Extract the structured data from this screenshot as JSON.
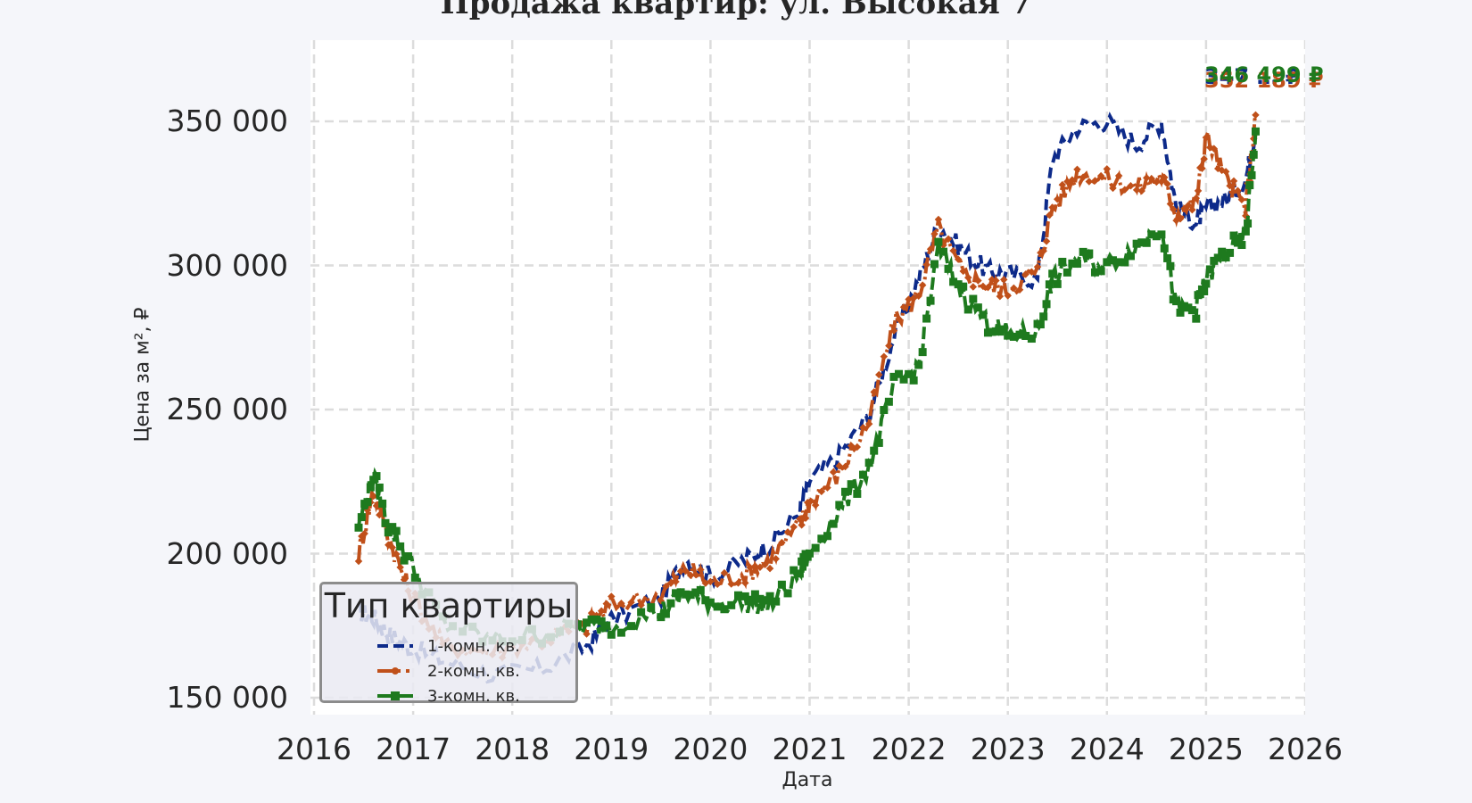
{
  "title": "Продажа квартир: ул. Высокая 7",
  "axes": {
    "ylabel": "Цена за м², ₽",
    "xlabel": "Дата",
    "yticks": [
      "150 000",
      "200 000",
      "250 000",
      "300 000",
      "350 000"
    ],
    "xticks": [
      "2016",
      "2017",
      "2018",
      "2019",
      "2020",
      "2021",
      "2022",
      "2023",
      "2024",
      "2025",
      "2026"
    ]
  },
  "legend": {
    "title": "Тип квартиры",
    "items": [
      {
        "label": "1-комн. кв.",
        "color": "#0d2a8a",
        "style": "dashed"
      },
      {
        "label": "2-комн. кв.",
        "color": "#c0501a",
        "style": "dash-dot with x markers"
      },
      {
        "label": "3-комн. кв.",
        "color": "#1e7a1e",
        "style": "dashed with square markers"
      }
    ]
  },
  "end_labels": {
    "one_room": "347 … ₽",
    "two_room": "352 189 ₽",
    "three_room": "346 499 ₽"
  },
  "colors": {
    "background": "#f5f6fa",
    "plot_bg": "#ffffff",
    "grid": "#dcdcdc",
    "one_room": "#0d2a8a",
    "two_room": "#c0501a",
    "three_room": "#1e7a1e"
  },
  "chart_data": {
    "type": "line",
    "title": "Продажа квартир: ул. Высокая 7",
    "xlabel": "Дата",
    "ylabel": "Цена за м², ₽",
    "xlim": [
      2016,
      2026
    ],
    "ylim": [
      145000,
      372000
    ],
    "grid": true,
    "legend_position": "lower left",
    "x": [
      2016.45,
      2016.6,
      2016.75,
      2016.95,
      2017.3,
      2017.8,
      2018.3,
      2018.75,
      2019.0,
      2019.5,
      2019.75,
      2020.0,
      2020.35,
      2020.6,
      2020.9,
      2021.0,
      2021.3,
      2021.6,
      2021.85,
      2022.1,
      2022.3,
      2022.55,
      2022.8,
      2023.0,
      2023.3,
      2023.45,
      2023.7,
      2024.0,
      2024.3,
      2024.55,
      2024.7,
      2024.9,
      2025.0,
      2025.2,
      2025.4,
      2025.5
    ],
    "series": [
      {
        "name": "1-комн. кв.",
        "values": [
          180000,
          178000,
          172000,
          168000,
          163000,
          158000,
          160000,
          168000,
          177000,
          185000,
          198000,
          192000,
          198000,
          203000,
          215000,
          225000,
          234000,
          248000,
          275000,
          295000,
          314000,
          305000,
          298000,
          297000,
          295000,
          337000,
          348000,
          350000,
          342000,
          350000,
          320000,
          315000,
          320000,
          323000,
          330000,
          347000
        ]
      },
      {
        "name": "2-комн. кв.",
        "values": [
          200000,
          222000,
          206000,
          188000,
          168000,
          166000,
          170000,
          175000,
          182000,
          186000,
          195000,
          190000,
          193000,
          198000,
          210000,
          218000,
          228000,
          246000,
          280000,
          290000,
          313000,
          297000,
          293000,
          292000,
          298000,
          320000,
          332000,
          330000,
          327000,
          331000,
          318000,
          322000,
          345000,
          330000,
          320000,
          352189
        ]
      },
      {
        "name": "3-комн. кв.",
        "values": [
          210000,
          227000,
          210000,
          198000,
          176000,
          170000,
          172000,
          175000,
          175000,
          180000,
          186000,
          183000,
          183000,
          182000,
          193000,
          200000,
          215000,
          230000,
          258000,
          265000,
          306000,
          290000,
          280000,
          276000,
          277000,
          295000,
          302000,
          300000,
          307000,
          314000,
          285000,
          285000,
          295000,
          305000,
          310000,
          346499
        ]
      }
    ]
  }
}
